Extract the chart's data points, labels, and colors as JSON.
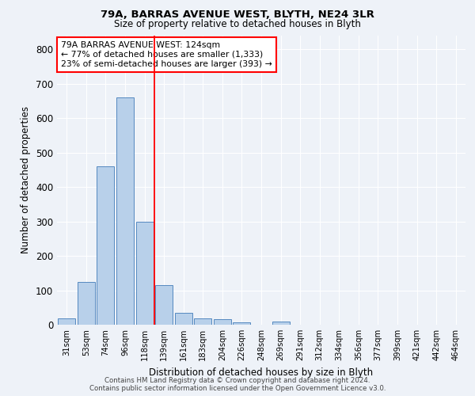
{
  "title1": "79A, BARRAS AVENUE WEST, BLYTH, NE24 3LR",
  "title2": "Size of property relative to detached houses in Blyth",
  "xlabel": "Distribution of detached houses by size in Blyth",
  "ylabel": "Number of detached properties",
  "footer1": "Contains HM Land Registry data © Crown copyright and database right 2024.",
  "footer2": "Contains public sector information licensed under the Open Government Licence v3.0.",
  "bar_labels": [
    "31sqm",
    "53sqm",
    "74sqm",
    "96sqm",
    "118sqm",
    "139sqm",
    "161sqm",
    "183sqm",
    "204sqm",
    "226sqm",
    "248sqm",
    "269sqm",
    "291sqm",
    "312sqm",
    "334sqm",
    "356sqm",
    "377sqm",
    "399sqm",
    "421sqm",
    "442sqm",
    "464sqm"
  ],
  "bar_values": [
    18,
    125,
    460,
    660,
    300,
    115,
    35,
    18,
    15,
    8,
    0,
    10,
    0,
    0,
    0,
    0,
    0,
    0,
    0,
    0,
    0
  ],
  "bar_color": "#b8d0ea",
  "bar_edge_color": "#5589c0",
  "annotation_text": "79A BARRAS AVENUE WEST: 124sqm\n← 77% of detached houses are smaller (1,333)\n23% of semi-detached houses are larger (393) →",
  "annotation_box_color": "white",
  "annotation_box_edge": "red",
  "ylim": [
    0,
    840
  ],
  "background_color": "#eef2f8",
  "red_line_index": 4.5
}
